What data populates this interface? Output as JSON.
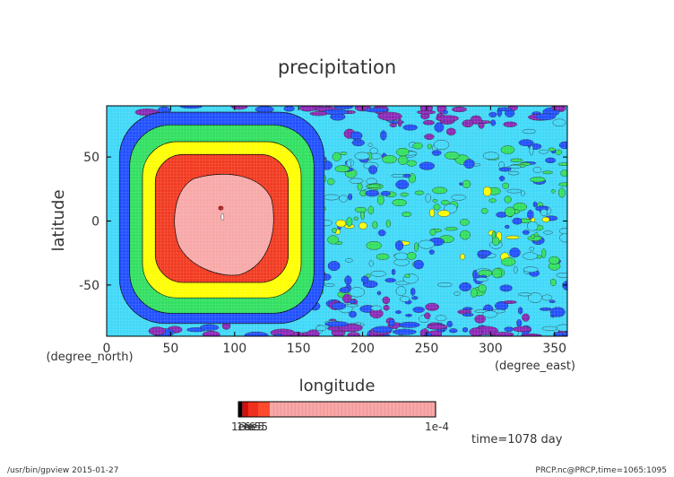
{
  "chart_data": {
    "type": "heatmap",
    "title": "precipitation",
    "xlabel": "longitude",
    "ylabel": "latitude",
    "x_unit": "(degree_east)",
    "y_unit": "(degree_north)",
    "xlim": [
      0,
      360
    ],
    "ylim": [
      -90,
      90
    ],
    "x_ticks": [
      "0",
      "50",
      "100",
      "150",
      "200",
      "250",
      "300",
      "350"
    ],
    "y_ticks": [
      "50",
      "0",
      "-50"
    ],
    "regions": [
      {
        "shape": "rounded-box",
        "lon": [
          10,
          170
        ],
        "lat": [
          -80,
          85
        ],
        "level": "1e-6"
      },
      {
        "shape": "rounded-box",
        "lon": [
          18,
          162
        ],
        "lat": [
          -72,
          75
        ],
        "level": "1e-5"
      },
      {
        "shape": "rounded-box",
        "lon": [
          28,
          152
        ],
        "lat": [
          -60,
          62
        ],
        "level": "3e-5"
      },
      {
        "shape": "rounded-box",
        "lon": [
          38,
          142
        ],
        "lat": [
          -48,
          52
        ],
        "level": "6e-5"
      },
      {
        "shape": "blob",
        "lon": [
          52,
          132
        ],
        "lat": [
          -42,
          37
        ],
        "level": "1e-4"
      }
    ],
    "colorbar": {
      "colors": [
        "#000000",
        "#d01010",
        "#f0301c",
        "#ff4a2e",
        "#f8a8a8"
      ],
      "fractions": [
        0.02,
        0.03,
        0.05,
        0.06,
        0.84
      ],
      "left_label": "1e-6",
      "left_label_overlap": [
        "1e-5",
        "3e-5",
        "6e-5"
      ],
      "right_label": "1e-4"
    }
  },
  "palette": {
    "purple": "#8a28b8",
    "blue": "#2050ff",
    "cyan": "#40d8f8",
    "green": "#30e060",
    "yellow": "#ffff00",
    "red": "#f23a20",
    "pink": "#f8a8a8",
    "ocean": "#40d8f8"
  },
  "annotations": {
    "time": "time=1078 day",
    "footer_left": "/usr/bin/gpview  2015-01-27",
    "footer_right": "PRCP.nc@PRCP,time=1065:1095"
  }
}
